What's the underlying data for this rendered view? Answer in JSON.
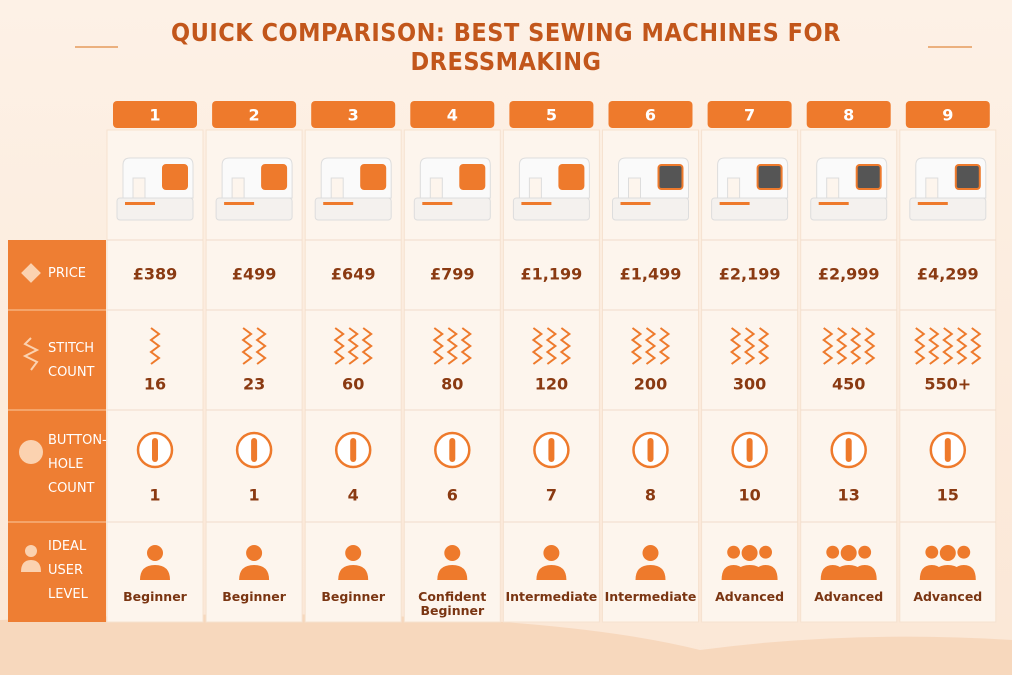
{
  "title": "QUICK COMPARISON: BEST SEWING MACHINES FOR DRESSMAKING",
  "table": {
    "columns": [
      "1",
      "2",
      "3",
      "4",
      "5",
      "6",
      "7",
      "8",
      "9"
    ],
    "rows": [
      {
        "label": "PRICE",
        "cells": [
          "£389",
          "£499",
          "£649",
          "£799",
          "£1,199",
          "£1,499",
          "£2,199",
          "£2,999",
          "£4,299"
        ]
      },
      {
        "label": "STITCH COUNT",
        "cells": [
          "16",
          "23",
          "60",
          "80",
          "120",
          "200",
          "300",
          "450",
          "550+"
        ]
      },
      {
        "label": "BUTTON-HOLE COUNT",
        "cells": [
          "1",
          "1",
          "4",
          "6",
          "7",
          "8",
          "10",
          "13",
          "15"
        ]
      },
      {
        "label": "IDEAL USER LEVEL",
        "cells": [
          "Beginner",
          "Beginner",
          "Beginner",
          "Confident Beginner",
          "Intermediate",
          "Intermediate",
          "Advanced",
          "Advanced",
          "Advanced"
        ]
      }
    ]
  }
}
